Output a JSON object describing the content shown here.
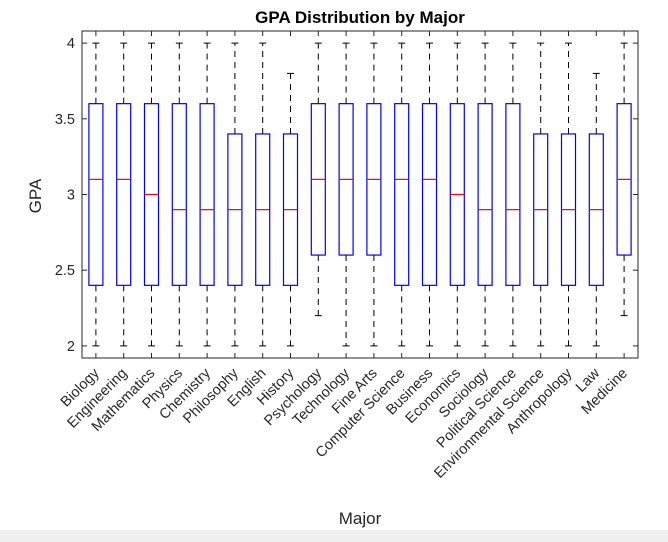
{
  "chart_data": {
    "type": "boxplot",
    "title": "GPA Distribution by Major",
    "xlabel": "Major",
    "ylabel": "GPA",
    "ylim": [
      1.92,
      4.08
    ],
    "yticks": [
      2,
      2.5,
      3,
      3.5,
      4
    ],
    "ytick_labels": [
      "2",
      "2.5",
      "3",
      "3.5",
      "4"
    ],
    "grid": false,
    "colors": {
      "box": "#0000ff",
      "median": "#ff0000",
      "whisker": "#000000",
      "axes": "#262626"
    },
    "categories": [
      "Biology",
      "Engineering",
      "Mathematics",
      "Physics",
      "Chemistry",
      "Philosophy",
      "English",
      "History",
      "Psychology",
      "Technology",
      "Fine Arts",
      "Computer Science",
      "Business",
      "Economics",
      "Sociology",
      "Political Science",
      "Environmental Science",
      "Anthropology",
      "Law",
      "Medicine"
    ],
    "boxes": [
      {
        "min": 2.0,
        "q1": 2.4,
        "median": 3.1,
        "q3": 3.6,
        "max": 4.0
      },
      {
        "min": 2.0,
        "q1": 2.4,
        "median": 3.1,
        "q3": 3.6,
        "max": 4.0
      },
      {
        "min": 2.0,
        "q1": 2.4,
        "median": 3.0,
        "q3": 3.6,
        "max": 4.0
      },
      {
        "min": 2.0,
        "q1": 2.4,
        "median": 2.9,
        "q3": 3.6,
        "max": 4.0
      },
      {
        "min": 2.0,
        "q1": 2.4,
        "median": 2.9,
        "q3": 3.6,
        "max": 4.0
      },
      {
        "min": 2.0,
        "q1": 2.4,
        "median": 2.9,
        "q3": 3.4,
        "max": 4.0
      },
      {
        "min": 2.0,
        "q1": 2.4,
        "median": 2.9,
        "q3": 3.4,
        "max": 4.0
      },
      {
        "min": 2.0,
        "q1": 2.4,
        "median": 2.9,
        "q3": 3.4,
        "max": 3.8
      },
      {
        "min": 2.2,
        "q1": 2.6,
        "median": 3.1,
        "q3": 3.6,
        "max": 4.0
      },
      {
        "min": 2.0,
        "q1": 2.6,
        "median": 3.1,
        "q3": 3.6,
        "max": 4.0
      },
      {
        "min": 2.0,
        "q1": 2.6,
        "median": 3.1,
        "q3": 3.6,
        "max": 4.0
      },
      {
        "min": 2.0,
        "q1": 2.4,
        "median": 3.1,
        "q3": 3.6,
        "max": 4.0
      },
      {
        "min": 2.0,
        "q1": 2.4,
        "median": 3.1,
        "q3": 3.6,
        "max": 4.0
      },
      {
        "min": 2.0,
        "q1": 2.4,
        "median": 3.0,
        "q3": 3.6,
        "max": 4.0
      },
      {
        "min": 2.0,
        "q1": 2.4,
        "median": 2.9,
        "q3": 3.6,
        "max": 4.0
      },
      {
        "min": 2.0,
        "q1": 2.4,
        "median": 2.9,
        "q3": 3.6,
        "max": 4.0
      },
      {
        "min": 2.0,
        "q1": 2.4,
        "median": 2.9,
        "q3": 3.4,
        "max": 4.0
      },
      {
        "min": 2.0,
        "q1": 2.4,
        "median": 2.9,
        "q3": 3.4,
        "max": 4.0
      },
      {
        "min": 2.0,
        "q1": 2.4,
        "median": 2.9,
        "q3": 3.4,
        "max": 3.8
      },
      {
        "min": 2.2,
        "q1": 2.6,
        "median": 3.1,
        "q3": 3.6,
        "max": 4.0
      }
    ]
  }
}
